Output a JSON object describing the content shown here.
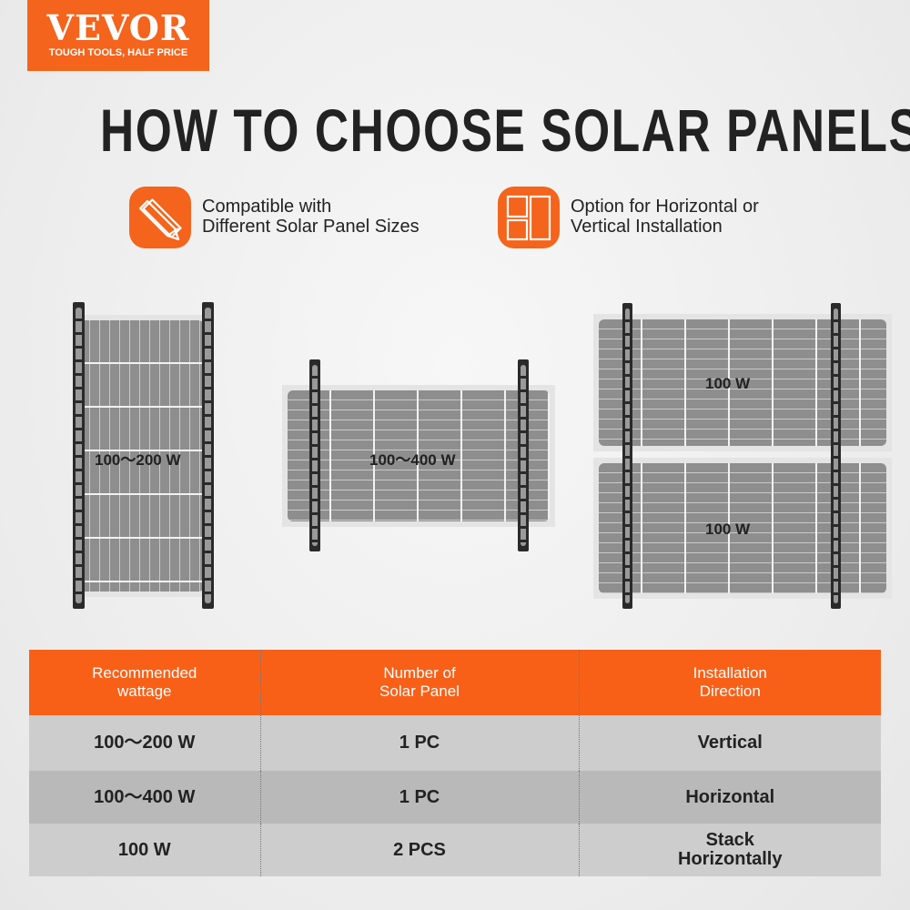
{
  "logo": {
    "brand": "VEVOR",
    "tagline": "TOUGH TOOLS, HALF PRICE",
    "color": "#f4641c"
  },
  "title": "HOW TO CHOOSE SOLAR PANELS",
  "features": [
    {
      "icon": "ruler-pencil-icon",
      "line1": "Compatible with",
      "line2": "Different Solar Panel Sizes"
    },
    {
      "icon": "layout-grid-icon",
      "line1": "Option for Horizontal or",
      "line2": "Vertical Installation"
    }
  ],
  "panels": {
    "vertical": {
      "label": "100～200 W"
    },
    "horizontal": {
      "label": "100～400 W"
    },
    "stacked": {
      "top_label": "100 W",
      "bottom_label": "100 W"
    }
  },
  "table": {
    "headers": [
      {
        "line1": "Recommended",
        "line2": "wattage"
      },
      {
        "line1": "Number of",
        "line2": "Solar Panel"
      },
      {
        "line1": "Installation",
        "line2": "Direction"
      }
    ],
    "rows": [
      {
        "wattage": "100～200 W",
        "count": "1 PC",
        "direction": "Vertical",
        "direction2": ""
      },
      {
        "wattage": "100～400 W",
        "count": "1 PC",
        "direction": "Horizontal",
        "direction2": ""
      },
      {
        "wattage": "100 W",
        "count": "2 PCS",
        "direction": "Stack",
        "direction2": "Horizontally"
      }
    ],
    "header_color": "#f86018"
  }
}
